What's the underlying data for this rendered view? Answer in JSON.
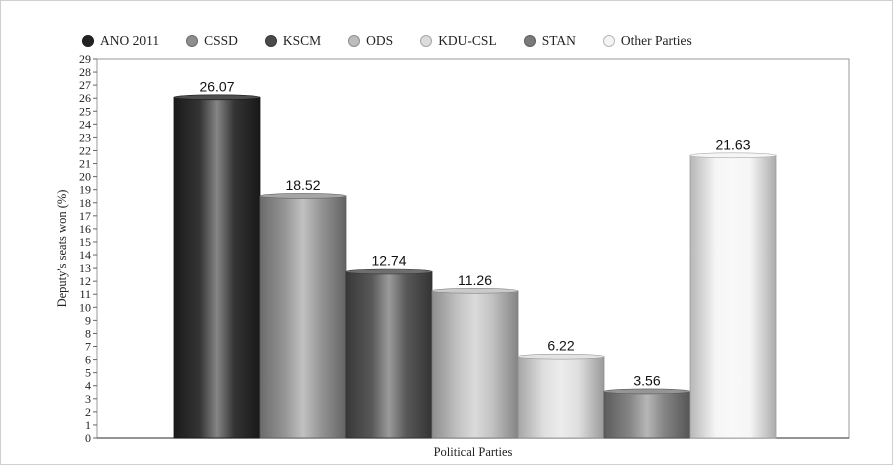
{
  "chart_data": {
    "type": "bar",
    "title": "",
    "xlabel": "Political Parties",
    "ylabel": "Deputy's seats won (%)",
    "ylim": [
      0,
      29
    ],
    "yticks": [
      0,
      1,
      2,
      3,
      4,
      5,
      6,
      7,
      8,
      9,
      10,
      11,
      12,
      13,
      14,
      15,
      16,
      17,
      18,
      19,
      20,
      21,
      22,
      23,
      24,
      25,
      26,
      27,
      28,
      29
    ],
    "grid": false,
    "legend_position": "top",
    "categories": [
      "ANO 2011",
      "CSSD",
      "KSCM",
      "ODS",
      "KDU-CSL",
      "STAN",
      "Other Parties"
    ],
    "values": [
      26.07,
      18.52,
      12.74,
      11.26,
      6.22,
      3.56,
      21.63
    ],
    "data_labels": [
      "26.07",
      "18.52",
      "12.74",
      "11.26",
      "6.22",
      "3.56",
      "21.63"
    ],
    "colors": [
      "#222222",
      "#8e8e8e",
      "#4a4a4a",
      "#bdbdbd",
      "#dcdcdc",
      "#7a7a7a",
      "#f4f4f4"
    ]
  }
}
